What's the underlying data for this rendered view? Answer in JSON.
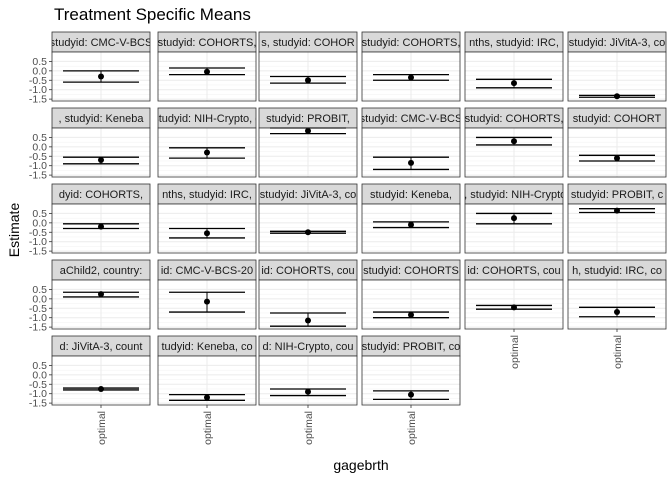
{
  "chart_data": {
    "type": "scatter",
    "title": "Treatment Specific Means",
    "xlabel": "gagebrth",
    "ylabel": "Estimate",
    "x_category": "optimal",
    "y_ticks": [
      "0.5",
      "0.0",
      "-0.5",
      "-1.0",
      "-1.5"
    ],
    "y_tick_values": [
      0.5,
      0.0,
      -0.5,
      -1.0,
      -1.5
    ],
    "ylim": [
      -1.6,
      1.0
    ],
    "grid": true,
    "facets": [
      {
        "strip": "studyid: CMC-V-BCS",
        "estimate": -0.3,
        "ci": [
          -0.6,
          0.0
        ]
      },
      {
        "strip": "studyid: COHORTS,",
        "estimate": -0.05,
        "ci": [
          -0.2,
          0.15
        ]
      },
      {
        "strip": "s, studyid: COHOR",
        "estimate": -0.5,
        "ci": [
          -0.65,
          -0.3
        ]
      },
      {
        "strip": "studyid: COHORTS,",
        "estimate": -0.35,
        "ci": [
          -0.5,
          -0.2
        ]
      },
      {
        "strip": "nths, studyid: IRC,",
        "estimate": -0.65,
        "ci": [
          -0.9,
          -0.45
        ]
      },
      {
        "strip": "studyid: JiVitA-3, co",
        "estimate": -1.35,
        "ci": [
          -1.4,
          -1.3
        ]
      },
      {
        "strip": ", studyid: Keneba",
        "estimate": -0.7,
        "ci": [
          -0.9,
          -0.55
        ]
      },
      {
        "strip": "studyid: NIH-Crypto, c",
        "estimate": -0.3,
        "ci": [
          -0.6,
          -0.05
        ]
      },
      {
        "strip": "studyid: PROBIT,",
        "estimate": 0.85,
        "ci": [
          0.7,
          1.0
        ]
      },
      {
        "strip": "studyid: CMC-V-BCS",
        "estimate": -0.85,
        "ci": [
          -1.2,
          -0.55
        ]
      },
      {
        "strip": "studyid: COHORTS,",
        "estimate": 0.3,
        "ci": [
          0.1,
          0.5
        ]
      },
      {
        "strip": "studyid: COHORT",
        "estimate": -0.6,
        "ci": [
          -0.75,
          -0.45
        ]
      },
      {
        "strip": "dyid: COHORTS,",
        "estimate": -0.2,
        "ci": [
          -0.3,
          -0.05
        ]
      },
      {
        "strip": "nths, studyid: IRC,",
        "estimate": -0.55,
        "ci": [
          -0.8,
          -0.3
        ]
      },
      {
        "strip": "studyid: JiVitA-3, co",
        "estimate": -0.5,
        "ci": [
          -0.55,
          -0.45
        ]
      },
      {
        "strip": "studyid: Keneba,",
        "estimate": -0.1,
        "ci": [
          -0.25,
          0.05
        ]
      },
      {
        "strip": "ti, studyid: NIH-Crypto,",
        "estimate": 0.25,
        "ci": [
          -0.05,
          0.5
        ]
      },
      {
        "strip": "studyid: PROBIT, c",
        "estimate": 0.65,
        "ci": [
          0.55,
          0.75
        ]
      },
      {
        "strip": "aChild2, country:",
        "estimate": 0.25,
        "ci": [
          0.1,
          0.35
        ]
      },
      {
        "strip": "id: CMC-V-BCS-20",
        "estimate": -0.15,
        "ci": [
          -0.7,
          0.35
        ]
      },
      {
        "strip": "id: COHORTS, cou",
        "estimate": -1.15,
        "ci": [
          -1.45,
          -0.75
        ]
      },
      {
        "strip": "studyid: COHORTS",
        "estimate": -0.85,
        "ci": [
          -1.0,
          -0.7
        ]
      },
      {
        "strip": "id: COHORTS, cou",
        "estimate": -0.45,
        "ci": [
          -0.55,
          -0.35
        ]
      },
      {
        "strip": "h, studyid: IRC, co",
        "estimate": -0.7,
        "ci": [
          -0.95,
          -0.45
        ]
      },
      {
        "strip": "d: JiVitA-3, count",
        "estimate": -0.75,
        "ci": [
          -0.8,
          -0.7
        ]
      },
      {
        "strip": "tudyid: Keneba, co",
        "estimate": -1.2,
        "ci": [
          -1.35,
          -1.05
        ]
      },
      {
        "strip": "d: NIH-Crypto, cou",
        "estimate": -0.9,
        "ci": [
          -1.1,
          -0.75
        ]
      },
      {
        "strip": "studyid: PROBIT, co",
        "estimate": -1.05,
        "ci": [
          -1.3,
          -0.85
        ]
      }
    ]
  }
}
